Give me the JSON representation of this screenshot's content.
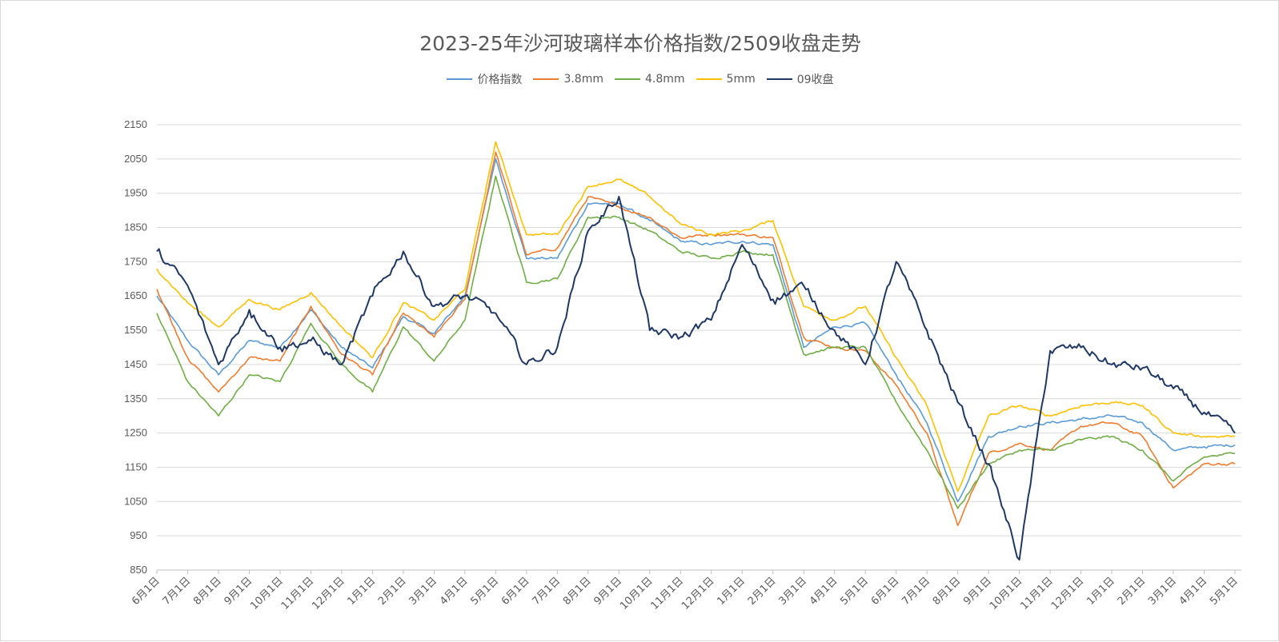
{
  "chart_data": {
    "type": "line",
    "title": "2023-25年沙河玻璃样本价格指数/2509收盘走势",
    "xlabel": "",
    "ylabel": "",
    "ylim": [
      850,
      2150
    ],
    "yticks": [
      850,
      950,
      1050,
      1150,
      1250,
      1350,
      1450,
      1550,
      1650,
      1750,
      1850,
      1950,
      2050,
      2150
    ],
    "categories": [
      "6月1日",
      "7月1日",
      "8月1日",
      "9月1日",
      "10月1日",
      "11月1日",
      "12月1日",
      "1月1日",
      "2月1日",
      "3月1日",
      "4月1日",
      "5月1日",
      "6月1日",
      "7月1日",
      "8月1日",
      "9月1日",
      "10月1日",
      "11月1日",
      "12月1日",
      "1月1日",
      "2月1日",
      "3月1日",
      "4月1日",
      "5月1日",
      "6月1日",
      "7月1日",
      "8月1日",
      "9月1日",
      "10月1日",
      "11月1日",
      "12月1日",
      "1月1日",
      "2月1日",
      "3月1日",
      "4月1日",
      "5月1日"
    ],
    "grid": true,
    "legend_position": "top",
    "series": [
      {
        "name": "价格指数",
        "color": "#5B9BD5",
        "values": [
          1650,
          1520,
          1420,
          1520,
          1500,
          1610,
          1500,
          1440,
          1590,
          1540,
          1650,
          2050,
          1760,
          1760,
          1920,
          1920,
          1870,
          1810,
          1800,
          1810,
          1800,
          1500,
          1560,
          1570,
          1420,
          1280,
          1050,
          1240,
          1270,
          1280,
          1290,
          1300,
          1280,
          1200,
          1210,
          1215
        ]
      },
      {
        "name": "3.8mm",
        "color": "#ED7D31",
        "values": [
          1670,
          1470,
          1370,
          1470,
          1460,
          1620,
          1480,
          1420,
          1600,
          1530,
          1640,
          2070,
          1770,
          1790,
          1940,
          1910,
          1880,
          1820,
          1830,
          1830,
          1820,
          1530,
          1500,
          1490,
          1390,
          1250,
          980,
          1190,
          1220,
          1200,
          1270,
          1280,
          1240,
          1090,
          1160,
          1160
        ]
      },
      {
        "name": "4.8mm",
        "color": "#70AD47",
        "values": [
          1600,
          1400,
          1300,
          1420,
          1400,
          1570,
          1450,
          1370,
          1560,
          1460,
          1580,
          2000,
          1690,
          1700,
          1880,
          1880,
          1840,
          1780,
          1760,
          1780,
          1770,
          1480,
          1500,
          1500,
          1340,
          1200,
          1030,
          1160,
          1200,
          1200,
          1230,
          1240,
          1200,
          1110,
          1180,
          1190
        ]
      },
      {
        "name": "5mm",
        "color": "#FFC000",
        "values": [
          1730,
          1630,
          1560,
          1640,
          1610,
          1660,
          1560,
          1470,
          1630,
          1580,
          1670,
          2100,
          1830,
          1830,
          1970,
          1990,
          1940,
          1860,
          1830,
          1840,
          1870,
          1620,
          1580,
          1620,
          1470,
          1330,
          1080,
          1300,
          1330,
          1300,
          1330,
          1340,
          1330,
          1250,
          1240,
          1240
        ]
      },
      {
        "name": "09收盘",
        "color": "#1F3864",
        "values": [
          1780,
          1680,
          1450,
          1610,
          1500,
          1520,
          1450,
          1650,
          1780,
          1620,
          1650,
          1600,
          1450,
          1500,
          1840,
          1940,
          1550,
          1530,
          1580,
          1800,
          1640,
          1680,
          1550,
          1450,
          1750,
          1550,
          1340,
          1160,
          880,
          1490,
          1500,
          1450,
          1440,
          1380,
          1310,
          1250
        ]
      }
    ]
  }
}
